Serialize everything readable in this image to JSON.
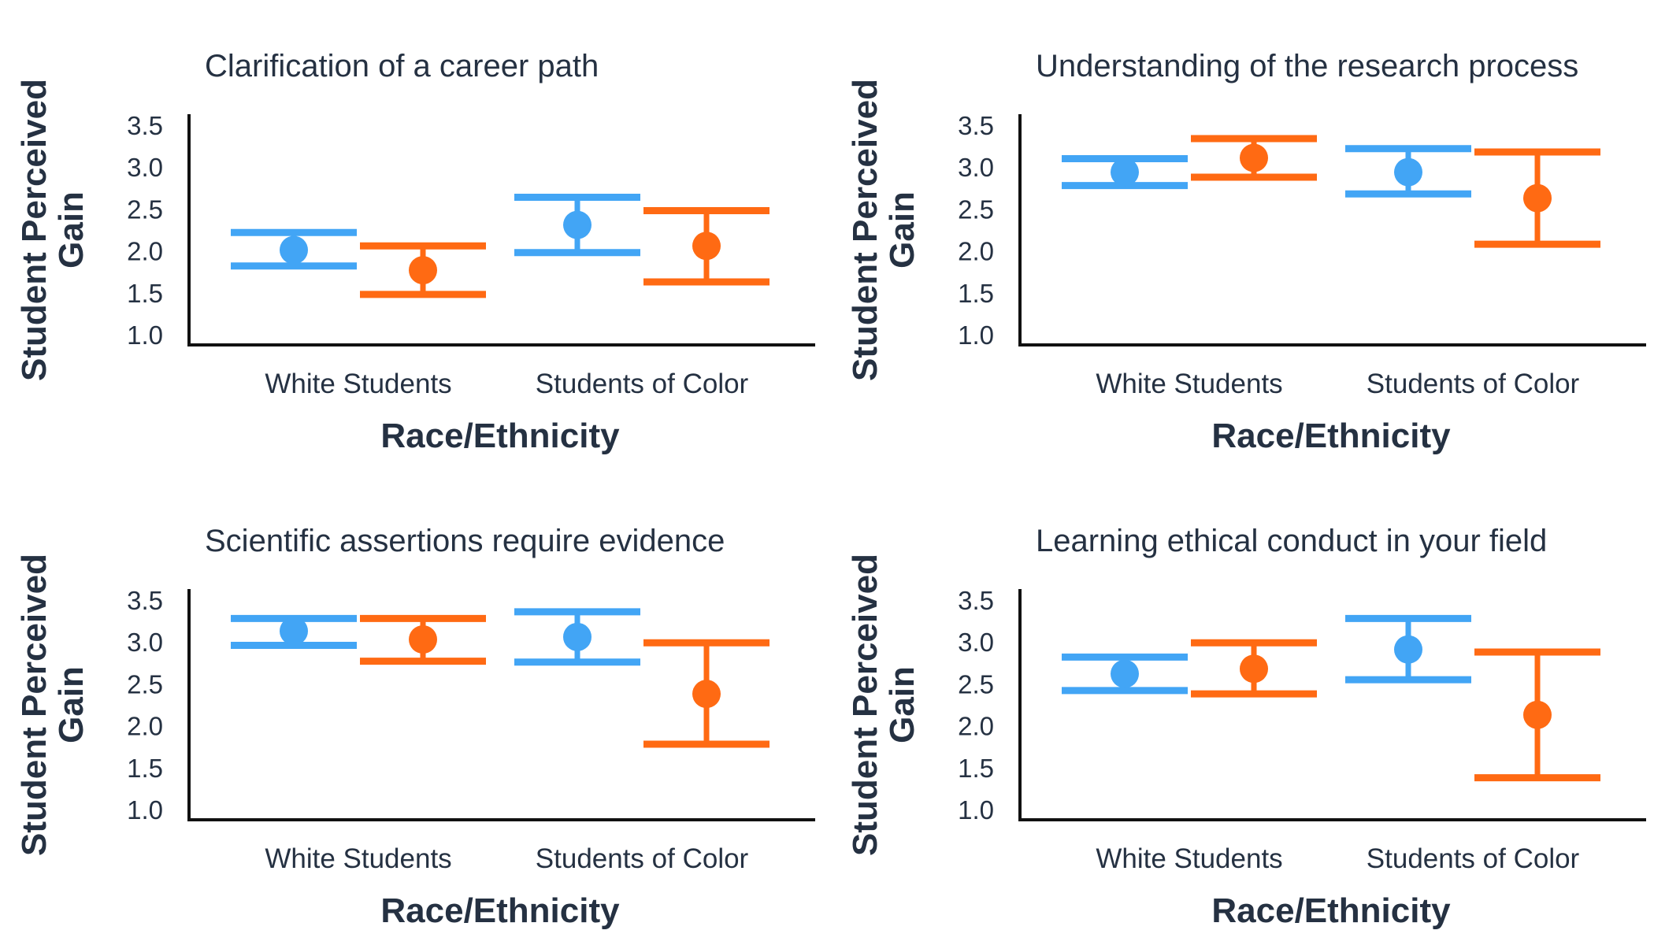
{
  "colors": {
    "text": "#253142",
    "axis": "#111111",
    "white_students": "#42A5F5",
    "students_of_color": "#FF6A13"
  },
  "chart_data": [
    {
      "type": "scatter",
      "title": "Clarification of a career path",
      "xlabel": "Race/Ethnicity",
      "ylabel": "Student Perceived Gain",
      "ylim": [
        1.0,
        3.5
      ],
      "yticks": [
        "1.0",
        "1.5",
        "2.0",
        "2.5",
        "3.0",
        "3.5"
      ],
      "categories": [
        "White Students",
        "Students of Color"
      ],
      "legend": "none",
      "grid": false,
      "series": [
        {
          "color": "#42A5F5",
          "points": [
            {
              "category": "White Students",
              "mean": 2.01,
              "lower": 1.82,
              "upper": 2.22
            },
            {
              "category": "Students of Color",
              "mean": 2.31,
              "lower": 1.98,
              "upper": 2.64
            }
          ]
        },
        {
          "color": "#FF6A13",
          "points": [
            {
              "category": "White Students",
              "mean": 1.77,
              "lower": 1.48,
              "upper": 2.06
            },
            {
              "category": "Students of Color",
              "mean": 2.06,
              "lower": 1.63,
              "upper": 2.48
            }
          ]
        }
      ]
    },
    {
      "type": "scatter",
      "title": "Understanding of the research process",
      "xlabel": "Race/Ethnicity",
      "ylabel": "Student Perceived Gain",
      "ylim": [
        1.0,
        3.5
      ],
      "yticks": [
        "1.0",
        "1.5",
        "2.0",
        "2.5",
        "3.0",
        "3.5"
      ],
      "categories": [
        "White Students",
        "Students of Color"
      ],
      "legend": "none",
      "grid": false,
      "series": [
        {
          "color": "#42A5F5",
          "points": [
            {
              "category": "White Students",
              "mean": 2.94,
              "lower": 2.78,
              "upper": 3.1
            },
            {
              "category": "Students of Color",
              "mean": 2.94,
              "lower": 2.68,
              "upper": 3.22
            }
          ]
        },
        {
          "color": "#FF6A13",
          "points": [
            {
              "category": "White Students",
              "mean": 3.11,
              "lower": 2.88,
              "upper": 3.34
            },
            {
              "category": "Students of Color",
              "mean": 2.63,
              "lower": 2.08,
              "upper": 3.18
            }
          ]
        }
      ]
    },
    {
      "type": "scatter",
      "title": "Scientific assertions require evidence",
      "xlabel": "Race/Ethnicity",
      "ylabel": "Student Perceived Gain",
      "ylim": [
        1.0,
        3.5
      ],
      "yticks": [
        "1.0",
        "1.5",
        "2.0",
        "2.5",
        "3.0",
        "3.5"
      ],
      "categories": [
        "White Students",
        "Students of Color"
      ],
      "legend": "none",
      "grid": false,
      "series": [
        {
          "color": "#42A5F5",
          "points": [
            {
              "category": "White Students",
              "mean": 3.13,
              "lower": 2.96,
              "upper": 3.28
            },
            {
              "category": "Students of Color",
              "mean": 3.06,
              "lower": 2.76,
              "upper": 3.36
            }
          ]
        },
        {
          "color": "#FF6A13",
          "points": [
            {
              "category": "White Students",
              "mean": 3.03,
              "lower": 2.77,
              "upper": 3.28
            },
            {
              "category": "Students of Color",
              "mean": 2.38,
              "lower": 1.78,
              "upper": 2.99
            }
          ]
        }
      ]
    },
    {
      "type": "scatter",
      "title": "Learning ethical conduct in your field",
      "xlabel": "Race/Ethnicity",
      "ylabel": "Student Perceived Gain",
      "ylim": [
        1.0,
        3.5
      ],
      "yticks": [
        "1.0",
        "1.5",
        "2.0",
        "2.5",
        "3.0",
        "3.5"
      ],
      "categories": [
        "White Students",
        "Students of Color"
      ],
      "legend": "none",
      "grid": false,
      "series": [
        {
          "color": "#42A5F5",
          "points": [
            {
              "category": "White Students",
              "mean": 2.62,
              "lower": 2.42,
              "upper": 2.82
            },
            {
              "category": "Students of Color",
              "mean": 2.91,
              "lower": 2.55,
              "upper": 3.28
            }
          ]
        },
        {
          "color": "#FF6A13",
          "points": [
            {
              "category": "White Students",
              "mean": 2.68,
              "lower": 2.38,
              "upper": 2.99
            },
            {
              "category": "Students of Color",
              "mean": 2.13,
              "lower": 1.38,
              "upper": 2.88
            }
          ]
        }
      ]
    }
  ]
}
